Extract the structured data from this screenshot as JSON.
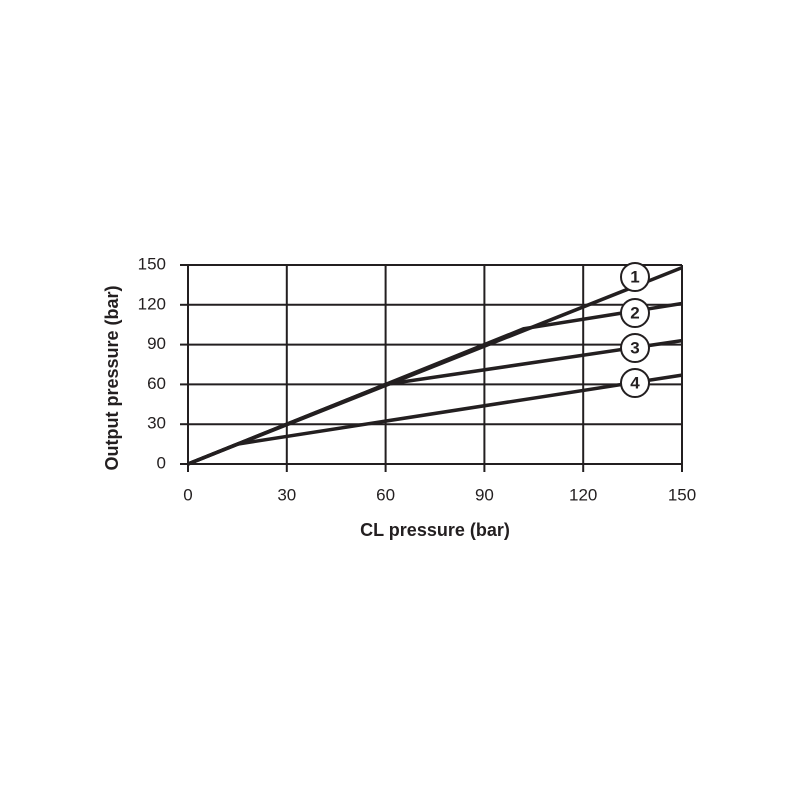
{
  "chart_data": {
    "type": "line",
    "xlabel": "CL pressure  (bar)",
    "ylabel": "Output pressure  (bar)",
    "xlim": [
      0,
      150
    ],
    "ylim": [
      0,
      150
    ],
    "xticks": [
      0,
      30,
      60,
      90,
      120,
      150
    ],
    "yticks": [
      0,
      30,
      60,
      90,
      120,
      150
    ],
    "grid": true,
    "series": [
      {
        "name": "1",
        "color": "#231f20",
        "x": [
          0,
          150
        ],
        "values": [
          0,
          148
        ]
      },
      {
        "name": "2",
        "color": "#231f20",
        "x": [
          0,
          102,
          150
        ],
        "values": [
          0,
          102,
          121
        ]
      },
      {
        "name": "3",
        "color": "#231f20",
        "x": [
          0,
          60,
          150
        ],
        "values": [
          0,
          60,
          93
        ]
      },
      {
        "name": "4",
        "color": "#231f20",
        "x": [
          0,
          15,
          150
        ],
        "values": [
          0,
          15,
          67
        ]
      }
    ]
  }
}
